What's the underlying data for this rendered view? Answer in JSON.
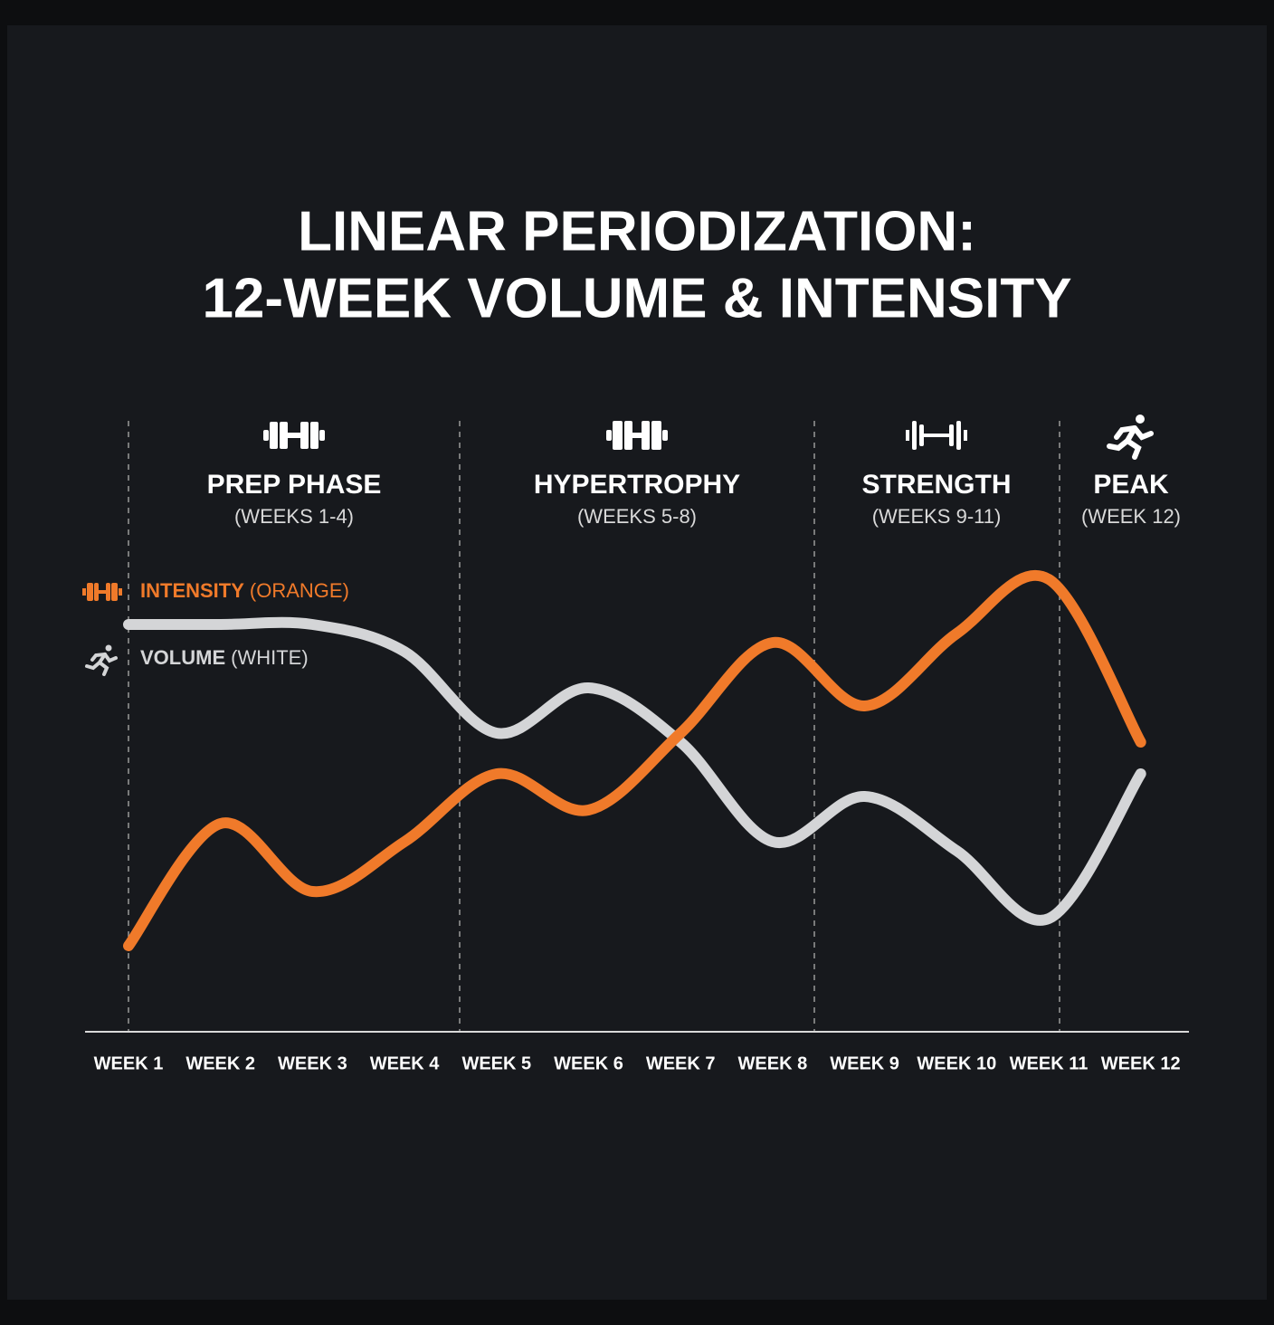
{
  "chart_data": {
    "type": "line",
    "title_lines": [
      "LINEAR PERIODIZATION:",
      "12-WEEK VOLUME & INTENSITY"
    ],
    "categories": [
      "WEEK 1",
      "WEEK 2",
      "WEEK 3",
      "WEEK 4",
      "WEEK 5",
      "WEEK 6",
      "WEEK 7",
      "WEEK 8",
      "WEEK 9",
      "WEEK 10",
      "WEEK 11",
      "WEEK 12"
    ],
    "phases": [
      {
        "name": "PREP PHASE",
        "range": "(WEEKS 1-4)"
      },
      {
        "name": "HYPERTROPHY",
        "range": "(WEEKS 5-8)"
      },
      {
        "name": "STRENGTH",
        "range": "(WEEKS 9-11)"
      },
      {
        "name": "PEAK",
        "range": "(WEEK 12)"
      }
    ],
    "series": [
      {
        "name": "INTENSITY",
        "note": "(ORANGE)",
        "color": "#f07a2a",
        "values": [
          19,
          46,
          31,
          42,
          57,
          49,
          66,
          86,
          72,
          88,
          100,
          64
        ]
      },
      {
        "name": "VOLUME",
        "note": "(WHITE)",
        "color": "#d4d5d7",
        "values": [
          90,
          90,
          90,
          84,
          66,
          76,
          64,
          42,
          52,
          40,
          25,
          57
        ]
      }
    ]
  }
}
